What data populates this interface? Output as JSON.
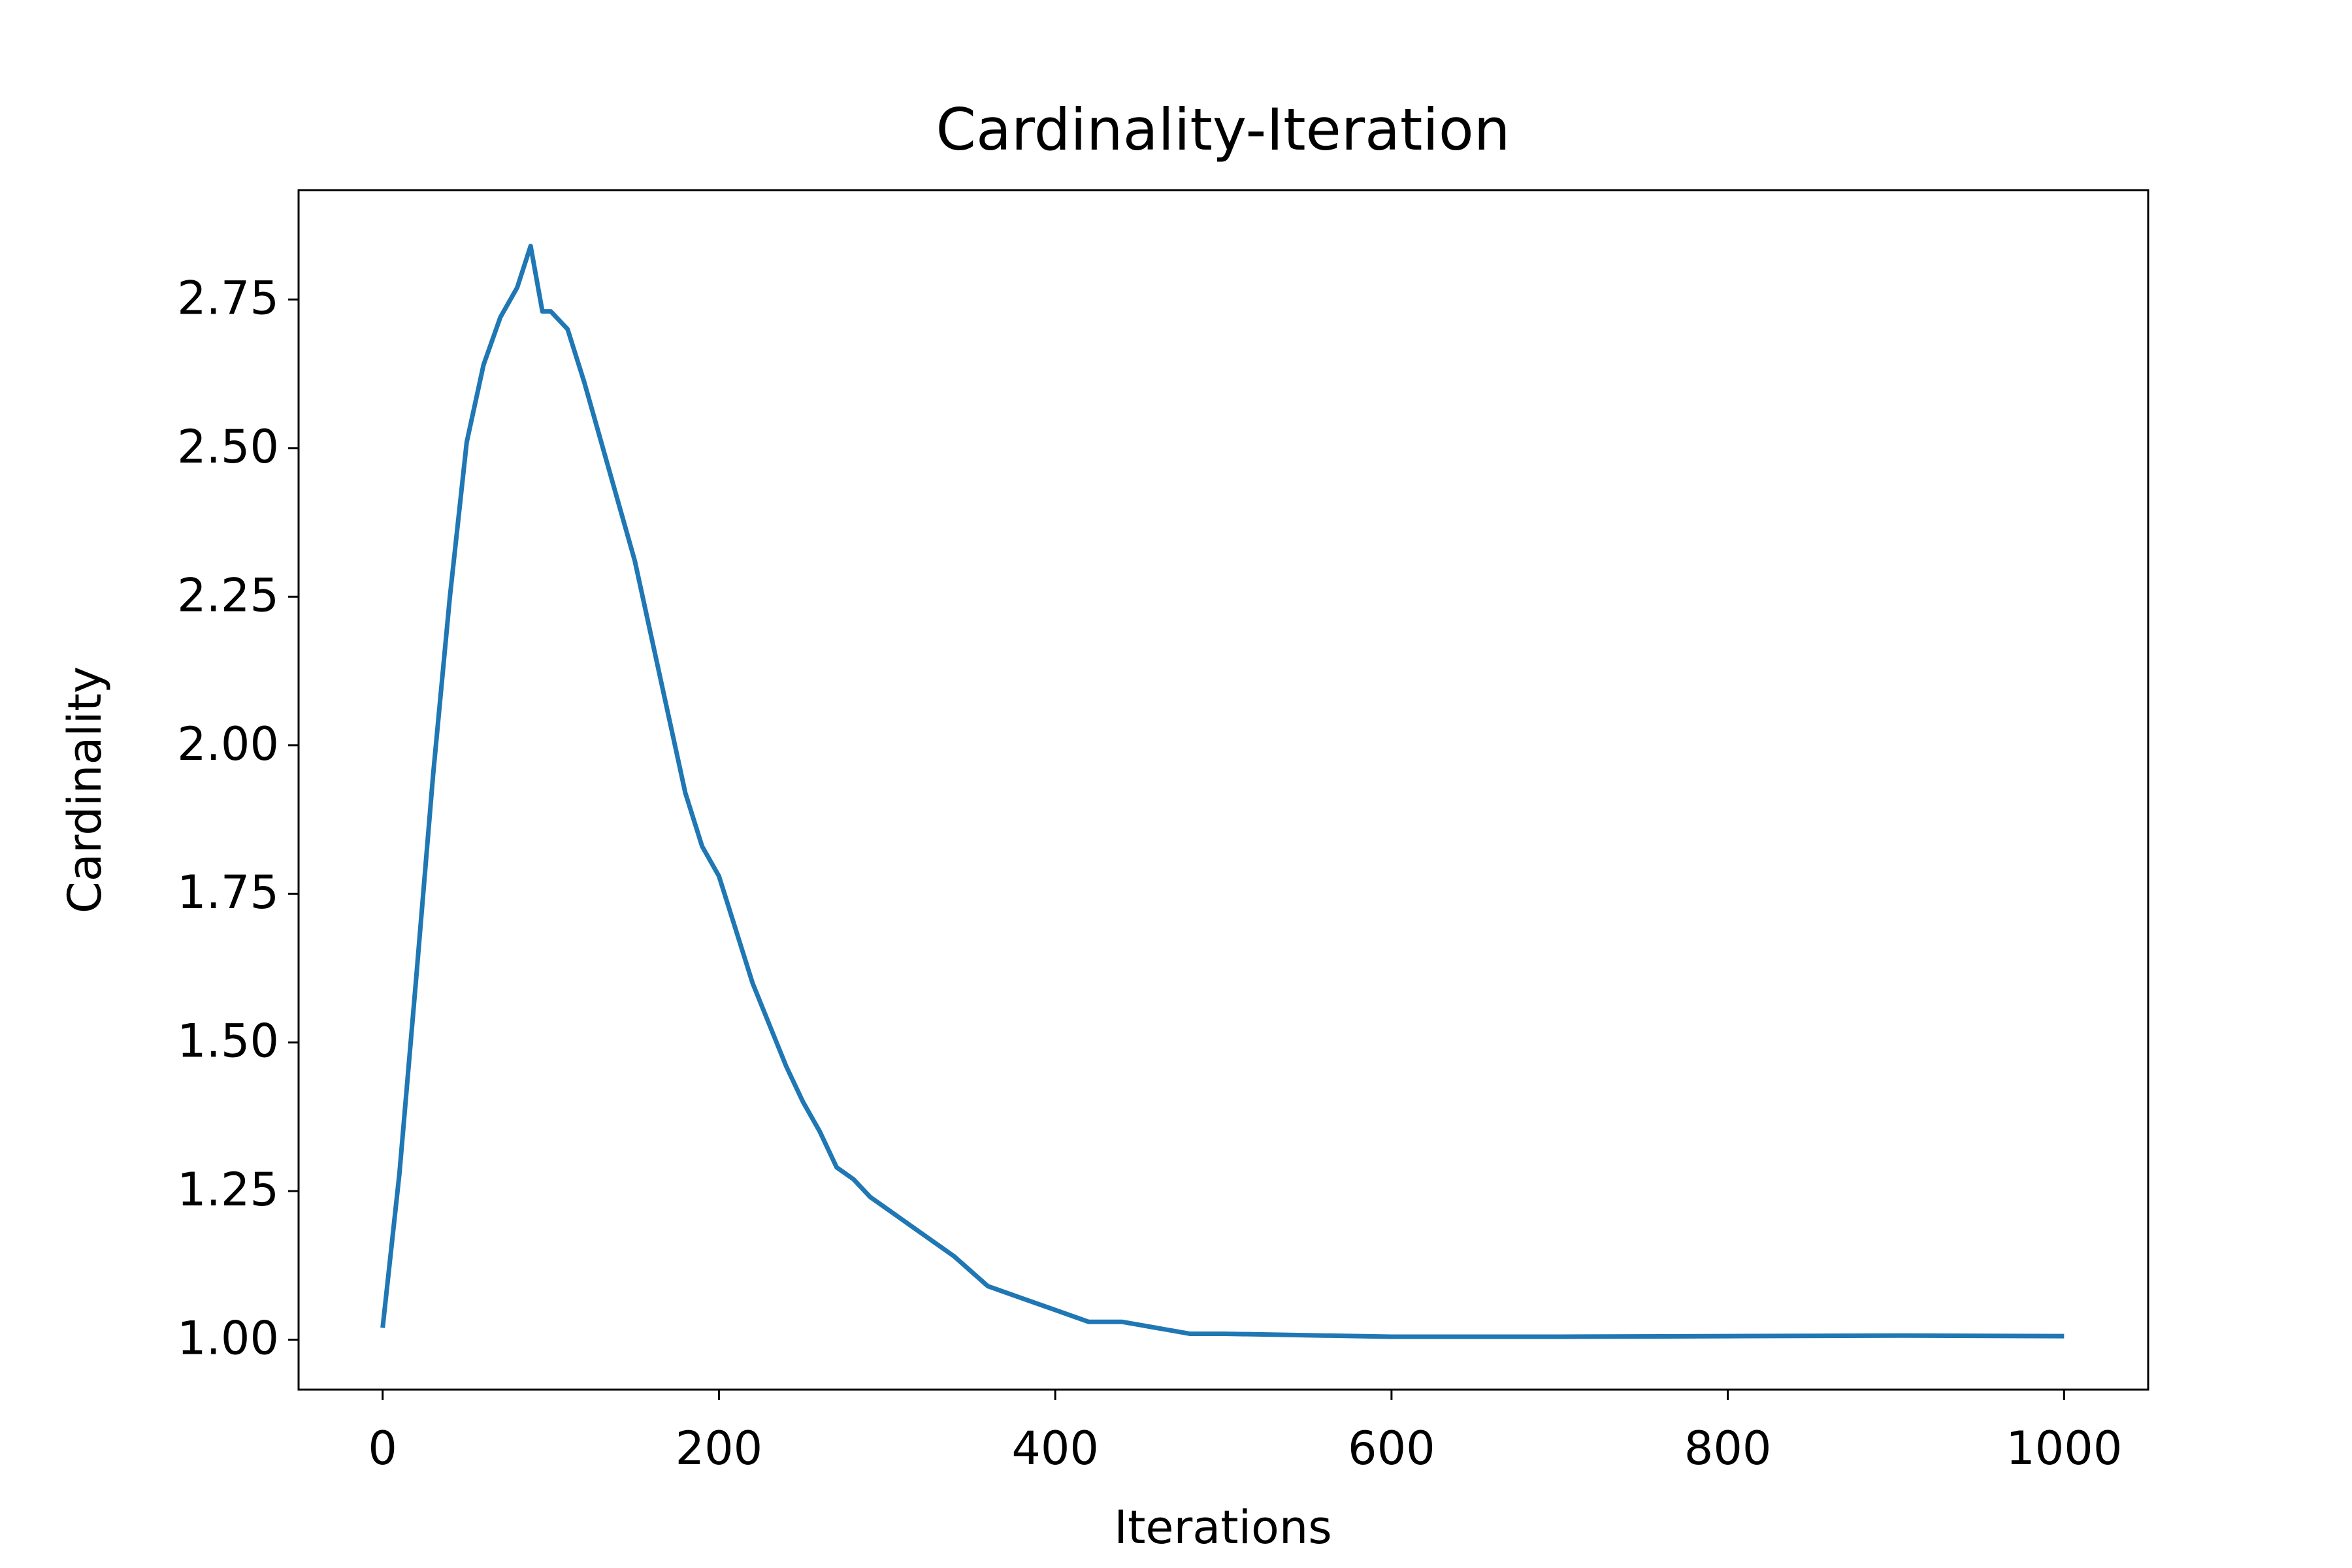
{
  "chart_data": {
    "type": "line",
    "title": "Cardinality-Iteration",
    "x_label": "Iterations",
    "y_label": "Cardinality",
    "x": [
      0,
      10,
      20,
      30,
      40,
      50,
      60,
      70,
      80,
      88,
      95,
      100,
      110,
      120,
      130,
      140,
      150,
      160,
      170,
      180,
      190,
      200,
      210,
      220,
      230,
      240,
      250,
      260,
      270,
      280,
      290,
      300,
      320,
      340,
      360,
      380,
      400,
      420,
      440,
      460,
      480,
      500,
      600,
      700,
      800,
      900,
      1000
    ],
    "series": [
      {
        "name": "Cardinality",
        "color": "#1f77b4",
        "values": [
          1.02,
          1.28,
          1.61,
          1.95,
          2.25,
          2.51,
          2.64,
          2.72,
          2.77,
          2.84,
          2.73,
          2.73,
          2.7,
          2.61,
          2.51,
          2.41,
          2.31,
          2.18,
          2.05,
          1.92,
          1.83,
          1.78,
          1.69,
          1.6,
          1.53,
          1.46,
          1.4,
          1.35,
          1.29,
          1.27,
          1.24,
          1.22,
          1.18,
          1.14,
          1.09,
          1.07,
          1.05,
          1.03,
          1.03,
          1.02,
          1.01,
          1.01,
          1.005,
          1.005,
          1.006,
          1.007,
          1.006
        ]
      }
    ],
    "xlim": [
      -50,
      1050
    ],
    "ylim": [
      0.916,
      2.934
    ],
    "xticks": [
      0,
      200,
      400,
      600,
      800,
      1000
    ],
    "yticks": [
      {
        "value": 1.0,
        "label": "1.00"
      },
      {
        "value": 1.25,
        "label": "1.25"
      },
      {
        "value": 1.5,
        "label": "1.50"
      },
      {
        "value": 1.75,
        "label": "1.75"
      },
      {
        "value": 2.0,
        "label": "2.00"
      },
      {
        "value": 2.25,
        "label": "2.25"
      },
      {
        "value": 2.5,
        "label": "2.50"
      },
      {
        "value": 2.75,
        "label": "2.75"
      }
    ],
    "grid": false
  }
}
